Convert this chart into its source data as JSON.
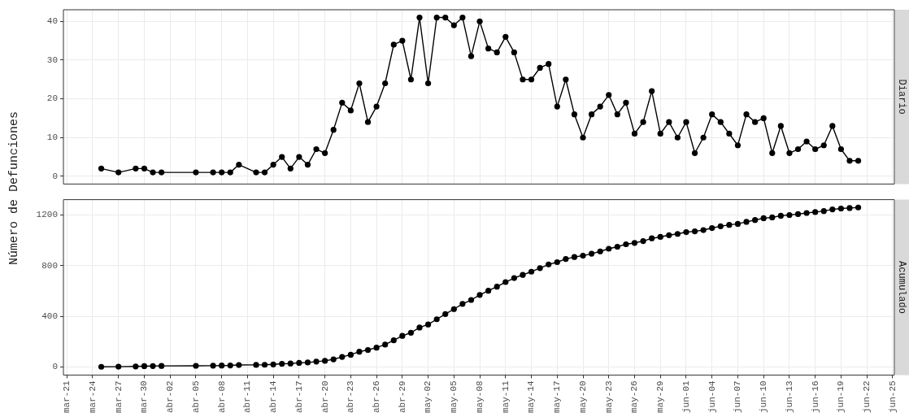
{
  "chart_data": [
    {
      "type": "line",
      "title": "Diario",
      "ylabel": "Número de Defunciones",
      "marker": "circle",
      "grid": true,
      "tick_labels": "y",
      "x": [
        "--03-25",
        "--03-27",
        "--03-29",
        "--03-30",
        "--03-31",
        "--04-01",
        "--04-05",
        "--04-07",
        "--04-08",
        "--04-09",
        "--04-10",
        "--04-12",
        "--04-13",
        "--04-14",
        "--04-15",
        "--04-16",
        "--04-17",
        "--04-18",
        "--04-19",
        "--04-20",
        "--04-21",
        "--04-22",
        "--04-23",
        "--04-24",
        "--04-25",
        "--04-26",
        "--04-27",
        "--04-28",
        "--04-29",
        "--04-30",
        "--05-01",
        "--05-02",
        "--05-03",
        "--05-04",
        "--05-05",
        "--05-06",
        "--05-07",
        "--05-08",
        "--05-09",
        "--05-10",
        "--05-11",
        "--05-12",
        "--05-13",
        "--05-14",
        "--05-15",
        "--05-16",
        "--05-17",
        "--05-18",
        "--05-19",
        "--05-20",
        "--05-21",
        "--05-22",
        "--05-23",
        "--05-24",
        "--05-25",
        "--05-26",
        "--05-27",
        "--05-28",
        "--05-29",
        "--05-30",
        "--05-31",
        "--06-01",
        "--06-02",
        "--06-03",
        "--06-04",
        "--06-05",
        "--06-06",
        "--06-07",
        "--06-08",
        "--06-09",
        "--06-10",
        "--06-11",
        "--06-12",
        "--06-13",
        "--06-14",
        "--06-15",
        "--06-16",
        "--06-17",
        "--06-18",
        "--06-19",
        "--06-20",
        "--06-21"
      ],
      "series": [
        {
          "color": "#000000",
          "values": [
            2,
            1,
            2,
            2,
            1,
            1,
            1,
            1,
            1,
            1,
            3,
            1,
            1,
            3,
            5,
            2,
            5,
            3,
            7,
            6,
            12,
            19,
            17,
            24,
            14,
            18,
            24,
            34,
            35,
            25,
            41,
            24,
            41,
            41,
            39,
            41,
            31,
            40,
            33,
            32,
            36,
            32,
            25,
            25,
            28,
            29,
            18,
            25,
            16,
            10,
            16,
            18,
            21,
            16,
            19,
            11,
            14,
            22,
            11,
            14,
            10,
            14,
            6,
            10,
            16,
            14,
            11,
            8,
            16,
            14,
            15,
            6,
            13,
            6,
            7,
            9,
            7,
            8,
            13,
            7,
            4,
            4
          ]
        }
      ],
      "xlim": [
        "--03-21",
        "--06-25"
      ],
      "xticks": [
        {
          "value": "--03-21",
          "label": "mar-21"
        },
        {
          "value": "--03-24",
          "label": "mar-24"
        },
        {
          "value": "--03-27",
          "label": "mar-27"
        },
        {
          "value": "--03-30",
          "label": "mar-30"
        },
        {
          "value": "--04-02",
          "label": "abr-02"
        },
        {
          "value": "--04-05",
          "label": "abr-05"
        },
        {
          "value": "--04-08",
          "label": "abr-08"
        },
        {
          "value": "--04-11",
          "label": "abr-11"
        },
        {
          "value": "--04-14",
          "label": "abr-14"
        },
        {
          "value": "--04-17",
          "label": "abr-17"
        },
        {
          "value": "--04-20",
          "label": "abr-20"
        },
        {
          "value": "--04-23",
          "label": "abr-23"
        },
        {
          "value": "--04-26",
          "label": "abr-26"
        },
        {
          "value": "--04-29",
          "label": "abr-29"
        },
        {
          "value": "--05-02",
          "label": "may-02"
        },
        {
          "value": "--05-05",
          "label": "may-05"
        },
        {
          "value": "--05-08",
          "label": "may-08"
        },
        {
          "value": "--05-11",
          "label": "may-11"
        },
        {
          "value": "--05-14",
          "label": "may-14"
        },
        {
          "value": "--05-17",
          "label": "may-17"
        },
        {
          "value": "--05-20",
          "label": "may-20"
        },
        {
          "value": "--05-23",
          "label": "may-23"
        },
        {
          "value": "--05-26",
          "label": "may-26"
        },
        {
          "value": "--05-29",
          "label": "may-29"
        },
        {
          "value": "--06-01",
          "label": "jun-01"
        },
        {
          "value": "--06-04",
          "label": "jun-04"
        },
        {
          "value": "--06-07",
          "label": "jun-07"
        },
        {
          "value": "--06-10",
          "label": "jun-10"
        },
        {
          "value": "--06-13",
          "label": "jun-13"
        },
        {
          "value": "--06-16",
          "label": "jun-16"
        },
        {
          "value": "--06-19",
          "label": "jun-19"
        },
        {
          "value": "--06-22",
          "label": "jun-22"
        },
        {
          "value": "--06-25",
          "label": "jun-25"
        }
      ],
      "ylim": [
        -2,
        43
      ],
      "yticks": [
        0,
        10,
        20,
        30,
        40
      ]
    },
    {
      "type": "line",
      "title": "Acumulado",
      "marker": "circle",
      "grid": true,
      "x": [
        "--03-25",
        "--03-27",
        "--03-29",
        "--03-30",
        "--03-31",
        "--04-01",
        "--04-05",
        "--04-07",
        "--04-08",
        "--04-09",
        "--04-10",
        "--04-12",
        "--04-13",
        "--04-14",
        "--04-15",
        "--04-16",
        "--04-17",
        "--04-18",
        "--04-19",
        "--04-20",
        "--04-21",
        "--04-22",
        "--04-23",
        "--04-24",
        "--04-25",
        "--04-26",
        "--04-27",
        "--04-28",
        "--04-29",
        "--04-30",
        "--05-01",
        "--05-02",
        "--05-03",
        "--05-04",
        "--05-05",
        "--05-06",
        "--05-07",
        "--05-08",
        "--05-09",
        "--05-10",
        "--05-11",
        "--05-12",
        "--05-13",
        "--05-14",
        "--05-15",
        "--05-16",
        "--05-17",
        "--05-18",
        "--05-19",
        "--05-20",
        "--05-21",
        "--05-22",
        "--05-23",
        "--05-24",
        "--05-25",
        "--05-26",
        "--05-27",
        "--05-28",
        "--05-29",
        "--05-30",
        "--05-31",
        "--06-01",
        "--06-02",
        "--06-03",
        "--06-04",
        "--06-05",
        "--06-06",
        "--06-07",
        "--06-08",
        "--06-09",
        "--06-10",
        "--06-11",
        "--06-12",
        "--06-13",
        "--06-14",
        "--06-15",
        "--06-16",
        "--06-17",
        "--06-18",
        "--06-19",
        "--06-20",
        "--06-21"
      ],
      "series": [
        {
          "color": "#000000",
          "values": [
            2,
            3,
            5,
            7,
            8,
            9,
            10,
            11,
            12,
            13,
            16,
            17,
            18,
            21,
            26,
            28,
            33,
            36,
            43,
            49,
            61,
            80,
            97,
            121,
            135,
            153,
            177,
            211,
            246,
            271,
            312,
            336,
            377,
            418,
            457,
            498,
            529,
            569,
            602,
            634,
            670,
            702,
            727,
            752,
            780,
            809,
            827,
            852,
            868,
            878,
            894,
            912,
            933,
            949,
            968,
            979,
            993,
            1015,
            1026,
            1040,
            1050,
            1064,
            1070,
            1080,
            1096,
            1110,
            1121,
            1129,
            1145,
            1159,
            1174,
            1180,
            1193,
            1199,
            1206,
            1215,
            1222,
            1230,
            1243,
            1250,
            1254,
            1258
          ]
        }
      ],
      "xlim": [
        "--03-21",
        "--06-25"
      ],
      "xticks": [
        {
          "value": "--03-21",
          "label": "mar-21"
        },
        {
          "value": "--03-24",
          "label": "mar-24"
        },
        {
          "value": "--03-27",
          "label": "mar-27"
        },
        {
          "value": "--03-30",
          "label": "mar-30"
        },
        {
          "value": "--04-02",
          "label": "abr-02"
        },
        {
          "value": "--04-05",
          "label": "abr-05"
        },
        {
          "value": "--04-08",
          "label": "abr-08"
        },
        {
          "value": "--04-11",
          "label": "abr-11"
        },
        {
          "value": "--04-14",
          "label": "abr-14"
        },
        {
          "value": "--04-17",
          "label": "abr-17"
        },
        {
          "value": "--04-20",
          "label": "abr-20"
        },
        {
          "value": "--04-23",
          "label": "abr-23"
        },
        {
          "value": "--04-26",
          "label": "abr-26"
        },
        {
          "value": "--04-29",
          "label": "abr-29"
        },
        {
          "value": "--05-02",
          "label": "may-02"
        },
        {
          "value": "--05-05",
          "label": "may-05"
        },
        {
          "value": "--05-08",
          "label": "may-08"
        },
        {
          "value": "--05-11",
          "label": "may-11"
        },
        {
          "value": "--05-14",
          "label": "may-14"
        },
        {
          "value": "--05-17",
          "label": "may-17"
        },
        {
          "value": "--05-20",
          "label": "may-20"
        },
        {
          "value": "--05-23",
          "label": "may-23"
        },
        {
          "value": "--05-26",
          "label": "may-26"
        },
        {
          "value": "--05-29",
          "label": "may-29"
        },
        {
          "value": "--06-01",
          "label": "jun-01"
        },
        {
          "value": "--06-04",
          "label": "jun-04"
        },
        {
          "value": "--06-07",
          "label": "jun-07"
        },
        {
          "value": "--06-10",
          "label": "jun-10"
        },
        {
          "value": "--06-13",
          "label": "jun-13"
        },
        {
          "value": "--06-16",
          "label": "jun-16"
        },
        {
          "value": "--06-19",
          "label": "jun-19"
        },
        {
          "value": "--06-22",
          "label": "jun-22"
        },
        {
          "value": "--06-25",
          "label": "jun-25"
        }
      ],
      "ylim": [
        -63,
        1320
      ],
      "yticks": [
        0,
        400,
        800,
        1200
      ]
    }
  ]
}
